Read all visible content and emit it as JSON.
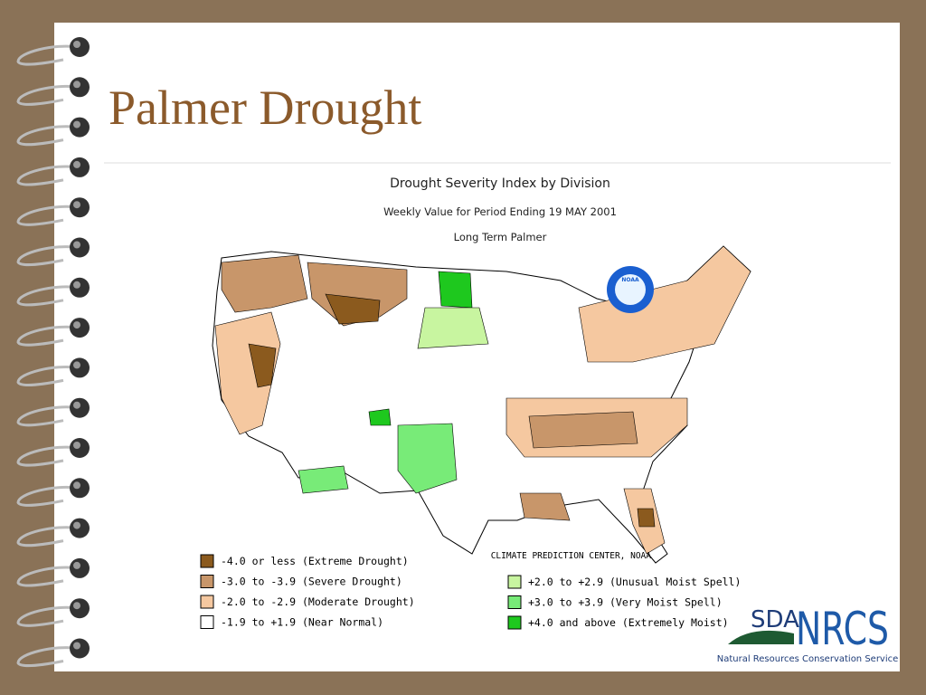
{
  "slide": {
    "title": "Palmer Drought"
  },
  "map": {
    "title": "Drought Severity Index by Division",
    "subtitle": "Weekly Value for Period Ending 19 MAY 2001",
    "subtitle2": "Long Term Palmer",
    "credit": "CLIMATE PREDICTION CENTER, NOAA",
    "logo": "NOAA",
    "legend": [
      {
        "label": "-4.0 or less (Extreme Drought)",
        "color": "#8b5a1e"
      },
      {
        "label": "-3.0 to -3.9 (Severe Drought)",
        "color": "#c8966a"
      },
      {
        "label": "-2.0 to -2.9 (Moderate Drought)",
        "color": "#f5c8a0"
      },
      {
        "label": "-1.9 to +1.9 (Near Normal)",
        "color": "#ffffff"
      },
      {
        "label": "+2.0 to +2.9 (Unusual Moist Spell)",
        "color": "#c8f5a0"
      },
      {
        "label": "+3.0 to +3.9 (Very Moist Spell)",
        "color": "#78eb78"
      },
      {
        "label": "+4.0 and above (Extremely Moist)",
        "color": "#1ec81e"
      }
    ]
  },
  "footer": {
    "logo_prefix": "SDA",
    "logo_text": "NRCS",
    "caption": "Natural Resources Conservation Service"
  }
}
